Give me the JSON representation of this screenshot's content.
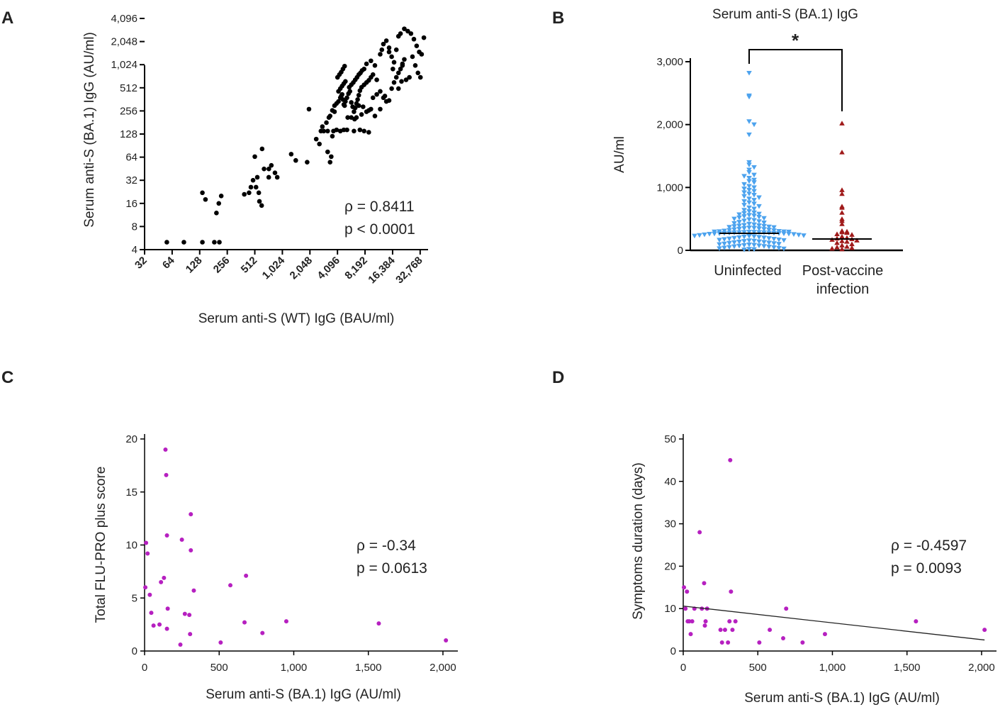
{
  "chart_data": [
    {
      "id": "A",
      "panel_label": "A",
      "type": "scatter",
      "x_scale": "log2",
      "y_scale": "log2",
      "xlabel": "Serum anti-S (WT) IgG (BAU/ml)",
      "ylabel": "Serum anti-S (BA.1) IgG (AU/ml)",
      "xlim": [
        32,
        40000
      ],
      "ylim": [
        4,
        4096
      ],
      "x_ticks": [
        32,
        64,
        128,
        256,
        512,
        1024,
        2048,
        4096,
        8192,
        16384,
        32768
      ],
      "x_tick_labels": [
        "32",
        "64",
        "128",
        "256",
        "512",
        "1,024",
        "2,048",
        "4,096",
        "8,192",
        "16,384",
        "32,768"
      ],
      "y_ticks": [
        4,
        8,
        16,
        32,
        64,
        128,
        256,
        512,
        1024,
        2048,
        4096
      ],
      "y_tick_labels": [
        "4",
        "8",
        "16",
        "32",
        "64",
        "128",
        "256",
        "512",
        "1,024",
        "2,048",
        "4,096"
      ],
      "annotations": [
        "ρ = 0.8411",
        "p < 0.0001"
      ],
      "color": "#000000",
      "points": [
        [
          56,
          5
        ],
        [
          86,
          5
        ],
        [
          137,
          5
        ],
        [
          185,
          5
        ],
        [
          210,
          5
        ],
        [
          137,
          22
        ],
        [
          148,
          18
        ],
        [
          195,
          12
        ],
        [
          207,
          16
        ],
        [
          220,
          20
        ],
        [
          393,
          21
        ],
        [
          443,
          22
        ],
        [
          464,
          26
        ],
        [
          490,
          32
        ],
        [
          566,
          22
        ],
        [
          575,
          17
        ],
        [
          608,
          15
        ],
        [
          528,
          26
        ],
        [
          545,
          35
        ],
        [
          646,
          45
        ],
        [
          727,
          35
        ],
        [
          776,
          50
        ],
        [
          850,
          40
        ],
        [
          900,
          35
        ],
        [
          512,
          65
        ],
        [
          615,
          82
        ],
        [
          729,
          45
        ],
        [
          1278,
          70
        ],
        [
          1434,
          58
        ],
        [
          1910,
          55
        ],
        [
          2000,
          270
        ],
        [
          2400,
          110
        ],
        [
          2600,
          95
        ],
        [
          2700,
          140
        ],
        [
          2800,
          160
        ],
        [
          3100,
          180
        ],
        [
          3200,
          75
        ],
        [
          3400,
          55
        ],
        [
          3500,
          65
        ],
        [
          3600,
          120
        ],
        [
          3300,
          210
        ],
        [
          3400,
          220
        ],
        [
          3600,
          260
        ],
        [
          3800,
          250
        ],
        [
          2900,
          140
        ],
        [
          3200,
          140
        ],
        [
          3700,
          140
        ],
        [
          4000,
          145
        ],
        [
          4400,
          140
        ],
        [
          4800,
          145
        ],
        [
          5200,
          145
        ],
        [
          6200,
          140
        ],
        [
          7200,
          145
        ],
        [
          8000,
          140
        ],
        [
          9000,
          135
        ],
        [
          3800,
          300
        ],
        [
          4000,
          320
        ],
        [
          4200,
          340
        ],
        [
          4400,
          380
        ],
        [
          4500,
          400
        ],
        [
          4600,
          420
        ],
        [
          4700,
          360
        ],
        [
          4800,
          310
        ],
        [
          4900,
          300
        ],
        [
          5000,
          340
        ],
        [
          5200,
          380
        ],
        [
          5400,
          430
        ],
        [
          5600,
          460
        ],
        [
          5800,
          330
        ],
        [
          6000,
          290
        ],
        [
          6200,
          250
        ],
        [
          6400,
          280
        ],
        [
          6600,
          320
        ],
        [
          6800,
          360
        ],
        [
          7000,
          410
        ],
        [
          7200,
          470
        ],
        [
          7500,
          520
        ],
        [
          8000,
          560
        ],
        [
          8500,
          600
        ],
        [
          9000,
          640
        ],
        [
          9500,
          700
        ],
        [
          10000,
          760
        ],
        [
          5500,
          520
        ],
        [
          5800,
          560
        ],
        [
          6100,
          600
        ],
        [
          6400,
          650
        ],
        [
          6700,
          700
        ],
        [
          7000,
          760
        ],
        [
          7300,
          800
        ],
        [
          7600,
          860
        ],
        [
          8000,
          900
        ],
        [
          4200,
          460
        ],
        [
          4400,
          500
        ],
        [
          4600,
          540
        ],
        [
          4800,
          580
        ],
        [
          5000,
          620
        ],
        [
          4100,
          700
        ],
        [
          4300,
          760
        ],
        [
          4500,
          820
        ],
        [
          4700,
          900
        ],
        [
          4900,
          980
        ],
        [
          5300,
          210
        ],
        [
          5800,
          210
        ],
        [
          6300,
          200
        ],
        [
          7500,
          230
        ],
        [
          8500,
          250
        ],
        [
          9500,
          270
        ],
        [
          10500,
          220
        ],
        [
          12000,
          270
        ],
        [
          13000,
          380
        ],
        [
          13500,
          400
        ],
        [
          14000,
          340
        ],
        [
          15000,
          350
        ],
        [
          16000,
          500
        ],
        [
          17000,
          600
        ],
        [
          18000,
          700
        ],
        [
          19000,
          800
        ],
        [
          20000,
          900
        ],
        [
          21000,
          1050
        ],
        [
          22000,
          1200
        ],
        [
          12000,
          1400
        ],
        [
          12500,
          1600
        ],
        [
          13000,
          1900
        ],
        [
          14000,
          2100
        ],
        [
          15000,
          1500
        ],
        [
          16000,
          1300
        ],
        [
          17000,
          1100
        ],
        [
          18000,
          1600
        ],
        [
          19000,
          2400
        ],
        [
          20000,
          2600
        ],
        [
          22000,
          3000
        ],
        [
          24000,
          2800
        ],
        [
          26000,
          2600
        ],
        [
          28000,
          2200
        ],
        [
          30000,
          1800
        ],
        [
          32000,
          1500
        ],
        [
          34000,
          1400
        ],
        [
          29000,
          1000
        ],
        [
          31000,
          800
        ],
        [
          33000,
          700
        ],
        [
          36000,
          2300
        ],
        [
          25000,
          700
        ],
        [
          23000,
          650
        ],
        [
          11000,
          650
        ],
        [
          10500,
          1000
        ],
        [
          15000,
          1700
        ],
        [
          16500,
          900
        ],
        [
          21000,
          1000
        ],
        [
          9500,
          1150
        ],
        [
          8500,
          1050
        ],
        [
          10000,
          380
        ],
        [
          11000,
          420
        ],
        [
          12000,
          460
        ],
        [
          7000,
          300
        ],
        [
          7800,
          290
        ],
        [
          6600,
          210
        ],
        [
          9000,
          260
        ],
        [
          19000,
          500
        ],
        [
          20500,
          620
        ],
        [
          27000,
          1300
        ]
      ]
    },
    {
      "id": "B",
      "panel_label": "B",
      "type": "scatter",
      "subtype": "dot_plot",
      "title": "Serum  anti-S (BA.1) IgG",
      "ylabel": "AU/ml",
      "ylim": [
        0,
        3000
      ],
      "y_ticks": [
        0,
        1000,
        2000,
        3000
      ],
      "y_tick_labels": [
        "0",
        "1,000",
        "2,000",
        "3,000"
      ],
      "categories": [
        "Uninfected",
        "Post-vaccine infection"
      ],
      "category_labels": [
        [
          "Uninfected"
        ],
        [
          "Post-vaccine",
          "infection"
        ]
      ],
      "significance": "*",
      "series": [
        {
          "name": "Uninfected",
          "color": "#4da3ee",
          "marker": "triangle-down",
          "median": 270,
          "values": [
            2820,
            2460,
            2440,
            2050,
            2000,
            1840,
            1400,
            1360,
            1320,
            1280,
            1240,
            1200,
            1180,
            1150,
            1120,
            1100,
            1080,
            1050,
            1020,
            1000,
            980,
            960,
            940,
            920,
            900,
            880,
            860,
            840,
            820,
            800,
            780,
            760,
            740,
            720,
            700,
            680,
            660,
            640,
            620,
            600,
            590,
            580,
            570,
            560,
            550,
            540,
            530,
            520,
            510,
            500,
            490,
            480,
            470,
            460,
            450,
            440,
            430,
            420,
            410,
            400,
            395,
            390,
            385,
            380,
            375,
            370,
            365,
            360,
            355,
            350,
            345,
            340,
            335,
            330,
            325,
            320,
            315,
            310,
            305,
            300,
            298,
            296,
            294,
            292,
            290,
            288,
            286,
            284,
            282,
            280,
            278,
            276,
            274,
            272,
            270,
            268,
            266,
            264,
            262,
            260,
            255,
            250,
            245,
            240,
            235,
            230,
            225,
            220,
            215,
            210,
            205,
            200,
            195,
            190,
            185,
            180,
            175,
            170,
            165,
            160,
            155,
            150,
            145,
            140,
            135,
            130,
            125,
            120,
            115,
            110,
            105,
            100,
            95,
            90,
            85,
            80,
            75,
            70,
            65,
            60,
            55,
            50,
            45,
            40,
            35,
            30,
            25,
            20,
            15,
            10
          ]
        },
        {
          "name": "Post-vaccine infection",
          "color": "#a01a1a",
          "marker": "triangle-up",
          "median": 180,
          "values": [
            2020,
            1560,
            960,
            900,
            700,
            680,
            600,
            500,
            470,
            420,
            310,
            300,
            290,
            280,
            260,
            250,
            220,
            200,
            190,
            180,
            170,
            160,
            150,
            140,
            120,
            100,
            80,
            60,
            50,
            40,
            30,
            20
          ]
        }
      ]
    },
    {
      "id": "C",
      "panel_label": "C",
      "type": "scatter",
      "xlabel": "Serum anti-S (BA.1) IgG (AU/ml)",
      "ylabel": "Total FLU-PRO plus score",
      "xlim": [
        0,
        2100
      ],
      "ylim": [
        0,
        20
      ],
      "x_ticks": [
        0,
        500,
        1000,
        1500,
        2000
      ],
      "x_tick_labels": [
        "0",
        "500",
        "1,000",
        "1,500",
        "2,000"
      ],
      "y_ticks": [
        0,
        5,
        10,
        15,
        20
      ],
      "y_tick_labels": [
        "0",
        "5",
        "10",
        "15",
        "20"
      ],
      "annotations": [
        "ρ = -0.34",
        "p = 0.0613"
      ],
      "color": "#b620c0",
      "points": [
        [
          5,
          6
        ],
        [
          10,
          10.2
        ],
        [
          20,
          9.2
        ],
        [
          35,
          5.3
        ],
        [
          45,
          3.6
        ],
        [
          60,
          2.4
        ],
        [
          100,
          2.5
        ],
        [
          110,
          6.5
        ],
        [
          130,
          6.9
        ],
        [
          140,
          19
        ],
        [
          145,
          16.6
        ],
        [
          150,
          10.9
        ],
        [
          155,
          4
        ],
        [
          150,
          2.1
        ],
        [
          240,
          0.6
        ],
        [
          250,
          10.5
        ],
        [
          270,
          3.5
        ],
        [
          300,
          3.4
        ],
        [
          305,
          1.6
        ],
        [
          310,
          12.9
        ],
        [
          310,
          9.5
        ],
        [
          330,
          5.7
        ],
        [
          510,
          0.8
        ],
        [
          575,
          6.2
        ],
        [
          670,
          2.7
        ],
        [
          680,
          7.1
        ],
        [
          790,
          1.7
        ],
        [
          950,
          2.8
        ],
        [
          1570,
          2.6
        ],
        [
          2020,
          1
        ]
      ]
    },
    {
      "id": "D",
      "panel_label": "D",
      "type": "scatter",
      "xlabel": "Serum anti-S (BA.1) IgG (AU/ml)",
      "ylabel": "Symptoms duration (days)",
      "xlim": [
        0,
        2100
      ],
      "ylim": [
        0,
        50
      ],
      "x_ticks": [
        0,
        500,
        1000,
        1500,
        2000
      ],
      "x_tick_labels": [
        "0",
        "500",
        "1,000",
        "1,500",
        "2,000"
      ],
      "y_ticks": [
        0,
        10,
        20,
        30,
        40,
        50
      ],
      "y_tick_labels": [
        "0",
        "10",
        "20",
        "30",
        "40",
        "50"
      ],
      "annotations": [
        "ρ = -0.4597",
        "p = 0.0093"
      ],
      "color": "#b620c0",
      "regression_line": [
        [
          0,
          10.6
        ],
        [
          2020,
          2.6
        ]
      ],
      "points": [
        [
          5,
          15
        ],
        [
          15,
          10
        ],
        [
          25,
          14
        ],
        [
          30,
          7
        ],
        [
          40,
          7
        ],
        [
          50,
          4
        ],
        [
          60,
          7
        ],
        [
          75,
          10
        ],
        [
          110,
          28
        ],
        [
          125,
          10
        ],
        [
          140,
          16
        ],
        [
          145,
          6
        ],
        [
          150,
          7
        ],
        [
          160,
          10
        ],
        [
          250,
          5
        ],
        [
          260,
          2
        ],
        [
          280,
          5
        ],
        [
          300,
          2
        ],
        [
          310,
          7
        ],
        [
          315,
          45
        ],
        [
          320,
          14
        ],
        [
          330,
          5
        ],
        [
          350,
          7
        ],
        [
          510,
          2
        ],
        [
          580,
          5
        ],
        [
          670,
          3
        ],
        [
          690,
          10
        ],
        [
          800,
          2
        ],
        [
          950,
          4
        ],
        [
          1560,
          7
        ],
        [
          2020,
          5
        ]
      ]
    }
  ]
}
